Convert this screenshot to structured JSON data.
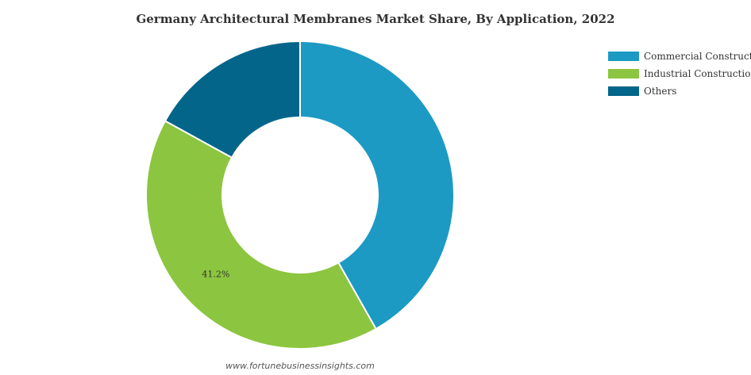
{
  "chart_data": {
    "type": "pie",
    "title": "Germany Architectural Membranes Market Share, By Application, 2022",
    "categories": [
      "Commercial Construction",
      "Industrial Construction",
      "Others"
    ],
    "values": [
      41.8,
      41.2,
      17.0
    ],
    "data_labels": [
      "",
      "41.2%",
      ""
    ],
    "colors": [
      "#1c9ac4",
      "#8cc540",
      "#04658a"
    ],
    "legend_position": "top-right",
    "donut": true
  },
  "source": "www.fortunebusinessinsights.com"
}
